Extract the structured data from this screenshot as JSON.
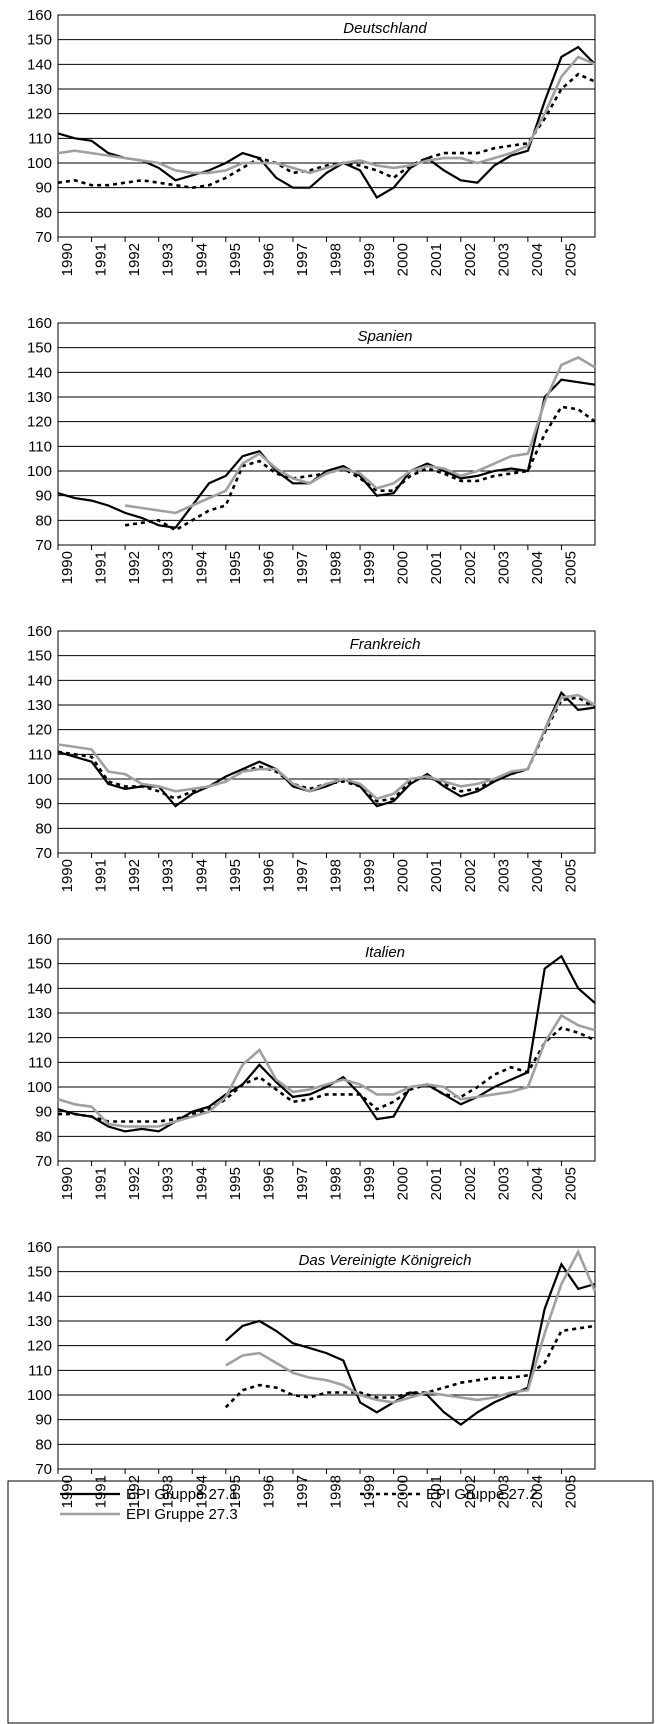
{
  "chart_data": [
    {
      "type": "line",
      "title": "Deutschland",
      "ylim": [
        70,
        160
      ],
      "yticks": [
        70,
        80,
        90,
        100,
        110,
        120,
        130,
        140,
        150,
        160
      ],
      "xlim": [
        1990,
        2006
      ],
      "xticks": [
        1990,
        1991,
        1992,
        1993,
        1994,
        1995,
        1996,
        1997,
        1998,
        1999,
        2000,
        2001,
        2002,
        2003,
        2004,
        2005
      ],
      "grid": true,
      "x": [
        1990,
        1990.5,
        1991,
        1991.5,
        1992,
        1992.5,
        1993,
        1993.5,
        1994,
        1994.5,
        1995,
        1995.5,
        1996,
        1996.5,
        1997,
        1997.5,
        1998,
        1998.5,
        1999,
        1999.5,
        2000,
        2000.5,
        2001,
        2001.5,
        2002,
        2002.5,
        2003,
        2003.5,
        2004,
        2004.5,
        2005,
        2005.5,
        2006
      ],
      "series": [
        {
          "name": "EPI Gruppe 27.1",
          "color": "#000000",
          "values": [
            112,
            110,
            109,
            104,
            102,
            101,
            98,
            93,
            95,
            97,
            100,
            104,
            102,
            94,
            90,
            90,
            96,
            100,
            97,
            86,
            90,
            98,
            102,
            97,
            93,
            92,
            99,
            103,
            105,
            125,
            143,
            147,
            140
          ]
        },
        {
          "name": "EPI Gruppe 27.2",
          "color": "#000000",
          "values": [
            92,
            93,
            91,
            91,
            92,
            93,
            92,
            91,
            90,
            91,
            94,
            98,
            102,
            100,
            96,
            97,
            99,
            100,
            99,
            97,
            94,
            99,
            102,
            104,
            104,
            104,
            106,
            107,
            108,
            118,
            130,
            136,
            133
          ]
        },
        {
          "name": "EPI Gruppe 27.3",
          "color": "#a0a0a0",
          "values": [
            104,
            105,
            104,
            103,
            102,
            101,
            100,
            97,
            96,
            96,
            97,
            100,
            100,
            100,
            98,
            96,
            98,
            100,
            101,
            99,
            98,
            99,
            101,
            102,
            102,
            100,
            102,
            104,
            107,
            120,
            135,
            143,
            140
          ]
        }
      ]
    },
    {
      "type": "line",
      "title": "Spanien",
      "ylim": [
        70,
        160
      ],
      "yticks": [
        70,
        80,
        90,
        100,
        110,
        120,
        130,
        140,
        150,
        160
      ],
      "xlim": [
        1990,
        2006
      ],
      "xticks": [
        1990,
        1991,
        1992,
        1993,
        1994,
        1995,
        1996,
        1997,
        1998,
        1999,
        2000,
        2001,
        2002,
        2003,
        2004,
        2005
      ],
      "grid": true,
      "x": [
        1990,
        1990.5,
        1991,
        1991.5,
        1992,
        1992.5,
        1993,
        1993.5,
        1994,
        1994.5,
        1995,
        1995.5,
        1996,
        1996.5,
        1997,
        1997.5,
        1998,
        1998.5,
        1999,
        1999.5,
        2000,
        2000.5,
        2001,
        2001.5,
        2002,
        2002.5,
        2003,
        2003.5,
        2004,
        2004.5,
        2005,
        2005.5,
        2006
      ],
      "series": [
        {
          "color": "#000000",
          "values": [
            91,
            89,
            88,
            86,
            83,
            81,
            78,
            77,
            86,
            95,
            98,
            106,
            108,
            100,
            95,
            95,
            100,
            102,
            98,
            90,
            91,
            100,
            103,
            100,
            97,
            98,
            100,
            101,
            100,
            130,
            137,
            136,
            135
          ]
        },
        {
          "color": "#000000",
          "values": [
            null,
            null,
            null,
            null,
            78,
            79,
            80,
            76,
            80,
            84,
            86,
            102,
            104,
            99,
            97,
            98,
            99,
            101,
            97,
            92,
            92,
            98,
            101,
            99,
            96,
            96,
            98,
            99,
            100,
            115,
            126,
            125,
            120
          ]
        },
        {
          "color": "#a0a0a0",
          "values": [
            null,
            null,
            null,
            null,
            86,
            85,
            84,
            83,
            86,
            89,
            92,
            103,
            107,
            101,
            97,
            95,
            99,
            101,
            99,
            93,
            95,
            100,
            102,
            101,
            98,
            100,
            103,
            106,
            107,
            128,
            143,
            146,
            142
          ]
        }
      ]
    },
    {
      "type": "line",
      "title": "Frankreich",
      "ylim": [
        70,
        160
      ],
      "yticks": [
        70,
        80,
        90,
        100,
        110,
        120,
        130,
        140,
        150,
        160
      ],
      "xlim": [
        1990,
        2006
      ],
      "xticks": [
        1990,
        1991,
        1992,
        1993,
        1994,
        1995,
        1996,
        1997,
        1998,
        1999,
        2000,
        2001,
        2002,
        2003,
        2004,
        2005
      ],
      "grid": true,
      "x": [
        1990,
        1990.5,
        1991,
        1991.5,
        1992,
        1992.5,
        1993,
        1993.5,
        1994,
        1994.5,
        1995,
        1995.5,
        1996,
        1996.5,
        1997,
        1997.5,
        1998,
        1998.5,
        1999,
        1999.5,
        2000,
        2000.5,
        2001,
        2001.5,
        2002,
        2002.5,
        2003,
        2003.5,
        2004,
        2004.5,
        2005,
        2005.5,
        2006
      ],
      "series": [
        {
          "color": "#000000",
          "values": [
            111,
            109,
            107,
            98,
            96,
            97,
            97,
            89,
            94,
            97,
            101,
            104,
            107,
            104,
            97,
            95,
            97,
            100,
            97,
            89,
            91,
            98,
            102,
            97,
            93,
            95,
            99,
            102,
            104,
            120,
            135,
            128,
            129
          ]
        },
        {
          "color": "#000000",
          "values": [
            111,
            110,
            109,
            99,
            97,
            97,
            95,
            92,
            95,
            97,
            99,
            103,
            105,
            103,
            98,
            96,
            98,
            99,
            97,
            91,
            92,
            99,
            101,
            98,
            95,
            96,
            100,
            102,
            104,
            119,
            132,
            133,
            129
          ]
        },
        {
          "color": "#a0a0a0",
          "values": [
            114,
            113,
            112,
            103,
            102,
            98,
            97,
            95,
            96,
            97,
            99,
            103,
            104,
            104,
            98,
            95,
            98,
            100,
            98,
            92,
            94,
            100,
            101,
            99,
            97,
            98,
            100,
            103,
            104,
            120,
            133,
            134,
            130
          ]
        }
      ]
    },
    {
      "type": "line",
      "title": "Italien",
      "ylim": [
        70,
        160
      ],
      "yticks": [
        70,
        80,
        90,
        100,
        110,
        120,
        130,
        140,
        150,
        160
      ],
      "xlim": [
        1990,
        2006
      ],
      "xticks": [
        1990,
        1991,
        1992,
        1993,
        1994,
        1995,
        1996,
        1997,
        1998,
        1999,
        2000,
        2001,
        2002,
        2003,
        2004,
        2005
      ],
      "grid": true,
      "x": [
        1990,
        1990.5,
        1991,
        1991.5,
        1992,
        1992.5,
        1993,
        1993.5,
        1994,
        1994.5,
        1995,
        1995.5,
        1996,
        1996.5,
        1997,
        1997.5,
        1998,
        1998.5,
        1999,
        1999.5,
        2000,
        2000.5,
        2001,
        2001.5,
        2002,
        2002.5,
        2003,
        2003.5,
        2004,
        2004.5,
        2005,
        2005.5,
        2006
      ],
      "series": [
        {
          "color": "#000000",
          "values": [
            91,
            89,
            88,
            84,
            82,
            83,
            82,
            86,
            90,
            92,
            97,
            101,
            109,
            102,
            96,
            97,
            100,
            104,
            97,
            87,
            88,
            100,
            101,
            97,
            93,
            96,
            100,
            103,
            106,
            148,
            153,
            140,
            134
          ]
        },
        {
          "color": "#000000",
          "values": [
            89,
            89,
            88,
            86,
            86,
            86,
            86,
            87,
            89,
            91,
            95,
            101,
            104,
            99,
            94,
            95,
            97,
            97,
            97,
            91,
            94,
            99,
            101,
            97,
            96,
            100,
            105,
            108,
            106,
            118,
            124,
            122,
            119
          ]
        },
        {
          "color": "#a0a0a0",
          "values": [
            95,
            93,
            92,
            85,
            84,
            84,
            84,
            86,
            88,
            90,
            96,
            109,
            115,
            103,
            98,
            99,
            101,
            103,
            101,
            97,
            97,
            100,
            101,
            100,
            95,
            96,
            97,
            98,
            100,
            118,
            129,
            125,
            123
          ]
        }
      ]
    },
    {
      "type": "line",
      "title": "Das Vereinigte Königreich",
      "ylim": [
        70,
        160
      ],
      "yticks": [
        70,
        80,
        90,
        100,
        110,
        120,
        130,
        140,
        150,
        160
      ],
      "xlim": [
        1990,
        2006
      ],
      "xticks": [
        1990,
        1991,
        1992,
        1993,
        1994,
        1995,
        1996,
        1997,
        1998,
        1999,
        2000,
        2001,
        2002,
        2003,
        2004,
        2005
      ],
      "grid": true,
      "x": [
        1990,
        1990.5,
        1991,
        1991.5,
        1992,
        1992.5,
        1993,
        1993.5,
        1994,
        1994.5,
        1995,
        1995.5,
        1996,
        1996.5,
        1997,
        1997.5,
        1998,
        1998.5,
        1999,
        1999.5,
        2000,
        2000.5,
        2001,
        2001.5,
        2002,
        2002.5,
        2003,
        2003.5,
        2004,
        2004.5,
        2005,
        2005.5,
        2006
      ],
      "series": [
        {
          "color": "#000000",
          "values": [
            null,
            null,
            null,
            null,
            null,
            null,
            null,
            null,
            null,
            null,
            122,
            128,
            130,
            126,
            121,
            119,
            117,
            114,
            97,
            93,
            97,
            101,
            100,
            93,
            88,
            93,
            97,
            100,
            103,
            135,
            153,
            143,
            145
          ]
        },
        {
          "color": "#000000",
          "values": [
            null,
            null,
            null,
            null,
            null,
            null,
            null,
            null,
            null,
            null,
            95,
            102,
            104,
            103,
            100,
            99,
            101,
            101,
            101,
            99,
            99,
            101,
            101,
            103,
            105,
            106,
            107,
            107,
            108,
            113,
            126,
            127,
            128
          ]
        },
        {
          "color": "#a0a0a0",
          "values": [
            null,
            null,
            null,
            null,
            null,
            null,
            null,
            null,
            null,
            null,
            112,
            116,
            117,
            113,
            109,
            107,
            106,
            104,
            100,
            98,
            97,
            99,
            101,
            100,
            99,
            98,
            99,
            101,
            102,
            125,
            145,
            158,
            142
          ]
        }
      ]
    }
  ]
}
